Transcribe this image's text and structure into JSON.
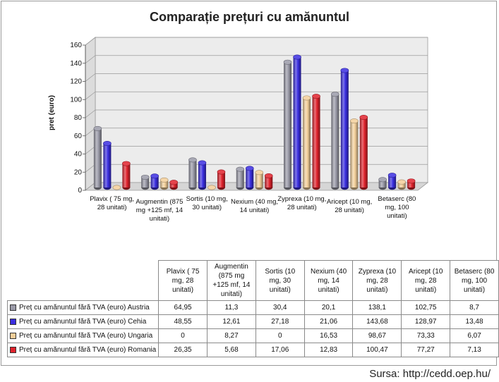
{
  "chart_data": {
    "type": "bar",
    "title": "Comparație prețuri cu amănuntul",
    "ylabel": "pret (euro)",
    "xlabel": "",
    "ylim": [
      0,
      160
    ],
    "yticks": [
      0,
      20,
      40,
      60,
      80,
      100,
      120,
      140,
      160
    ],
    "grid": true,
    "legend": "table-below",
    "categories": [
      "Plavix ( 75 mg, 28 unitati)",
      "Augmentin (875 mg +125 mf, 14 unitati)",
      "Sortis (10 mg, 30 unitati)",
      "Nexium (40 mg, 14 unitati)",
      "Zyprexa (10 mg, 28 unitati)",
      "Aricept (10 mg, 28 unitati)",
      "Betaserc (80 mg, 100 unitati)"
    ],
    "categories_table": [
      "Plavix ( 75 mg, 28 unitati)",
      "Augmentin (875 mg +125 mf, 14 unitati)",
      "Sortis (10 mg, 30 unitati)",
      "Nexium (40 mg, 14 unitati)",
      "Zyprexa (10 mg, 28 unitati)",
      "Aricept (10 mg, 28 unitati)",
      "Betaserc (80 mg, 100 unitati)"
    ],
    "series": [
      {
        "name": "Preț cu amănuntul fără TVA (euro) Austria",
        "color": "#9a9aa8",
        "values": [
          64.95,
          11.3,
          30.4,
          20.1,
          138.1,
          102.75,
          8.7
        ],
        "labels": [
          "64,95",
          "11,3",
          "30,4",
          "20,1",
          "138,1",
          "102,75",
          "8,7"
        ]
      },
      {
        "name": "Preț cu amănuntul fără TVA (euro) Cehia",
        "color": "#3a2ee0",
        "values": [
          48.55,
          12.61,
          27.18,
          21.06,
          143.68,
          128.97,
          13.48
        ],
        "labels": [
          "48,55",
          "12,61",
          "27,18",
          "21,06",
          "143,68",
          "128,97",
          "13,48"
        ]
      },
      {
        "name": "Preț cu amănuntul fără TVA (euro) Ungaria",
        "color": "#f3cf9a",
        "values": [
          0,
          8.27,
          0,
          16.53,
          98.67,
          73.33,
          6.07
        ],
        "labels": [
          "0",
          "8,27",
          "0",
          "16,53",
          "98,67",
          "73,33",
          "6,07"
        ]
      },
      {
        "name": "Preț cu amănuntul fără TVA (euro) Romania",
        "color": "#e0222c",
        "values": [
          26.35,
          5.68,
          17.06,
          12.83,
          100.47,
          77.27,
          7.13
        ],
        "labels": [
          "26,35",
          "5,68",
          "17,06",
          "12,83",
          "100,47",
          "77,27",
          "7,13"
        ]
      }
    ]
  },
  "source": "Sursa: http://cedd.oep.hu/"
}
